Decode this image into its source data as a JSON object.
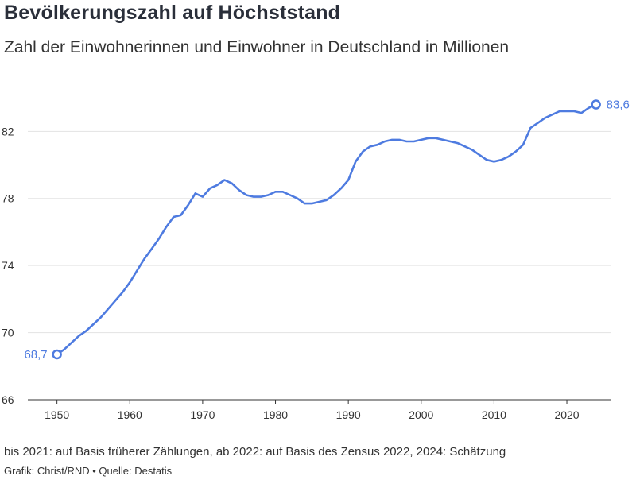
{
  "title": "Bevölkerungszahl auf Höchststand",
  "subtitle": "Zahl der Einwohnerinnen und Einwohner in Deutschland in Millionen",
  "note": "bis 2021: auf Basis früherer Zählungen, ab 2022: auf Basis des Zensus 2022, 2024: Schätzung",
  "source": "Grafik: Christ/RND • Quelle: Destatis",
  "colors": {
    "line": "#4e7be0",
    "grid": "#e3e3e3",
    "axis": "#333333"
  },
  "chart_data": {
    "type": "line",
    "xlim": [
      1946,
      2026
    ],
    "ylim": [
      66,
      85
    ],
    "xticks": [
      1950,
      1960,
      1970,
      1980,
      1990,
      2000,
      2010,
      2020
    ],
    "yticks": [
      66,
      70,
      74,
      78,
      82
    ],
    "xtick_labels": [
      "1950",
      "1960",
      "1970",
      "1980",
      "1990",
      "2000",
      "2010",
      "2020"
    ],
    "ytick_labels": [
      "66",
      "70",
      "74",
      "78",
      "82"
    ],
    "grid": "horizontal",
    "start_label": "68,7",
    "end_label": "83,6",
    "series": [
      {
        "x": [
          1950,
          1951,
          1952,
          1953,
          1954,
          1955,
          1956,
          1957,
          1958,
          1959,
          1960,
          1961,
          1962,
          1963,
          1964,
          1965,
          1966,
          1967,
          1968,
          1969,
          1970,
          1971,
          1972,
          1973,
          1974,
          1975,
          1976,
          1977,
          1978,
          1979,
          1980,
          1981,
          1982,
          1983,
          1984,
          1985,
          1986,
          1987,
          1988,
          1989,
          1990,
          1991,
          1992,
          1993,
          1994,
          1995,
          1996,
          1997,
          1998,
          1999,
          2000,
          2001,
          2002,
          2003,
          2004,
          2005,
          2006,
          2007,
          2008,
          2009,
          2010,
          2011,
          2012,
          2013,
          2014,
          2015,
          2016,
          2017,
          2018,
          2019,
          2020,
          2021,
          2022,
          2023,
          2024
        ],
        "values": [
          68.7,
          69.0,
          69.4,
          69.8,
          70.1,
          70.5,
          70.9,
          71.4,
          71.9,
          72.4,
          73.0,
          73.7,
          74.4,
          75.0,
          75.6,
          76.3,
          76.9,
          77.0,
          77.6,
          78.3,
          78.1,
          78.6,
          78.8,
          79.1,
          78.9,
          78.5,
          78.2,
          78.1,
          78.1,
          78.2,
          78.4,
          78.4,
          78.2,
          78.0,
          77.7,
          77.7,
          77.8,
          77.9,
          78.2,
          78.6,
          79.1,
          80.2,
          80.8,
          81.1,
          81.2,
          81.4,
          81.5,
          81.5,
          81.4,
          81.4,
          81.5,
          81.6,
          81.6,
          81.5,
          81.4,
          81.3,
          81.1,
          80.9,
          80.6,
          80.3,
          80.2,
          80.3,
          80.5,
          80.8,
          81.2,
          82.2,
          82.5,
          82.8,
          83.0,
          83.2,
          83.2,
          83.2,
          83.1,
          83.4,
          83.6
        ]
      }
    ]
  }
}
